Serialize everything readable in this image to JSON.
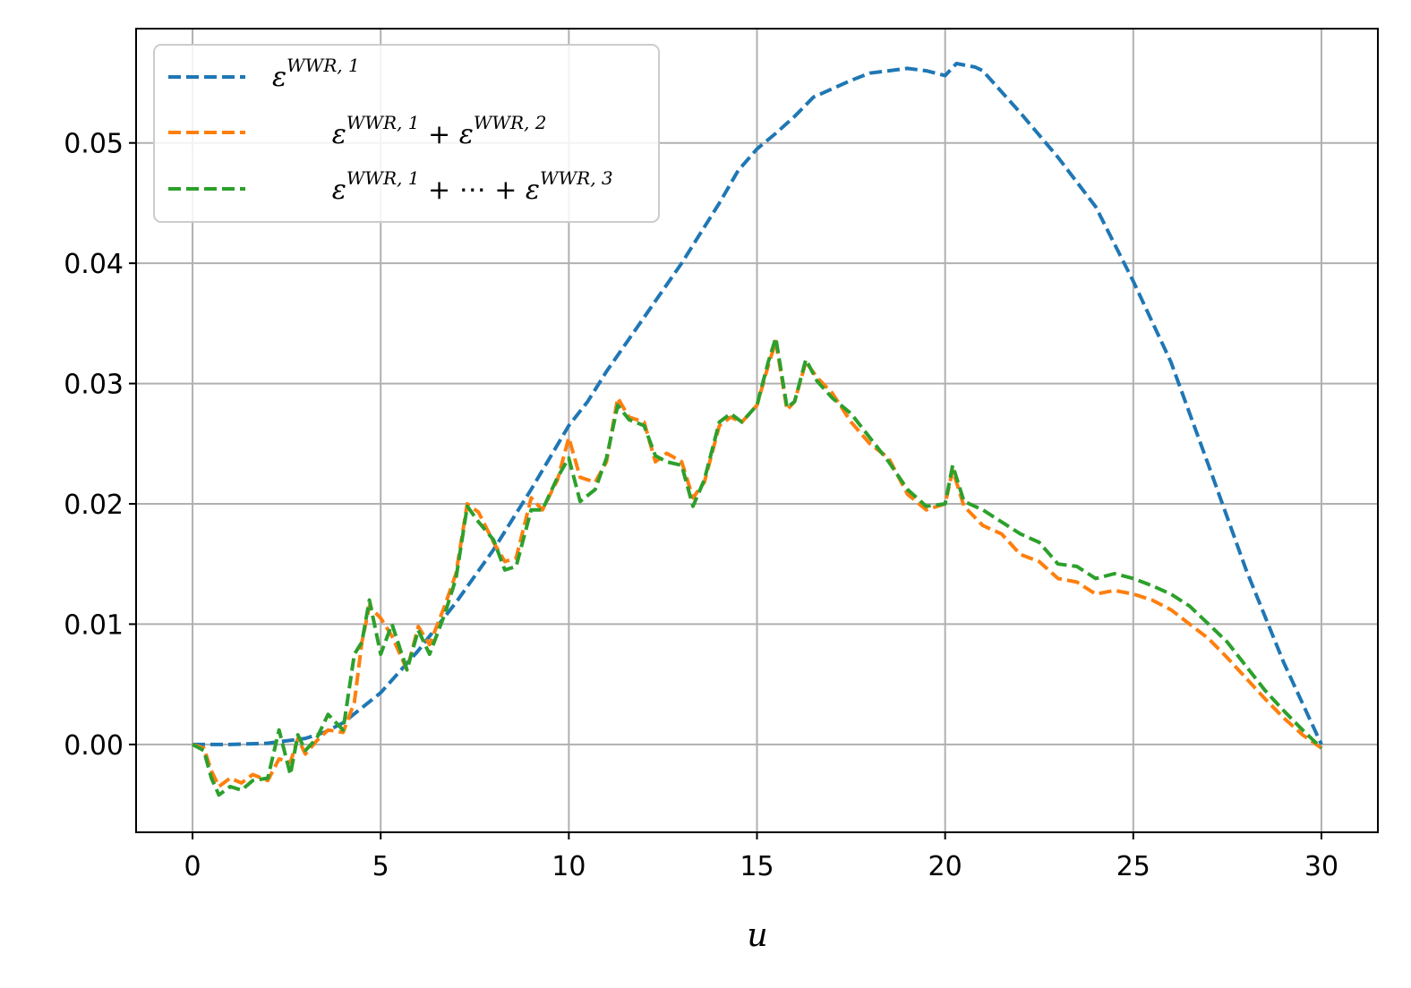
{
  "chart_data": {
    "type": "line",
    "xlabel": "u",
    "ylabel": "",
    "xlim": [
      -1.5,
      31.5
    ],
    "ylim": [
      -0.0073,
      0.0595
    ],
    "grid": true,
    "legend_position": "top-left",
    "x_ticks": [
      0,
      5,
      10,
      15,
      20,
      25,
      30
    ],
    "x_tick_labels": [
      "0",
      "5",
      "10",
      "15",
      "20",
      "25",
      "30"
    ],
    "y_ticks": [
      0.0,
      0.01,
      0.02,
      0.03,
      0.04,
      0.05
    ],
    "y_tick_labels": [
      "0.00",
      "0.01",
      "0.02",
      "0.03",
      "0.04",
      "0.05"
    ],
    "series": [
      {
        "name": "ε^{WWR,1}",
        "legend": {
          "base": "ε",
          "sup": "WWR, 1"
        },
        "color": "#1f77b4",
        "style": "dashed",
        "x": [
          0,
          1,
          2,
          3,
          3.5,
          4,
          5,
          6,
          7,
          8,
          9,
          10,
          10.5,
          11,
          12,
          13,
          14,
          14.5,
          15,
          15.5,
          16,
          16.5,
          17,
          17.5,
          18,
          18.5,
          19,
          19.5,
          20,
          20.3,
          20.8,
          21,
          22,
          23,
          24,
          25,
          26,
          27,
          28,
          29,
          30
        ],
        "values": [
          0.0,
          0.0,
          0.0001,
          0.0005,
          0.001,
          0.0018,
          0.0043,
          0.0078,
          0.0118,
          0.0162,
          0.0212,
          0.0265,
          0.0285,
          0.031,
          0.0355,
          0.04,
          0.045,
          0.0477,
          0.0495,
          0.0508,
          0.0522,
          0.0538,
          0.0545,
          0.0552,
          0.0558,
          0.056,
          0.0562,
          0.056,
          0.0556,
          0.0566,
          0.0563,
          0.056,
          0.0525,
          0.0488,
          0.0447,
          0.0385,
          0.0318,
          0.0232,
          0.0145,
          0.0068,
          0.0
        ]
      },
      {
        "name": "ε^{WWR,1} + ε^{WWR,2}",
        "legend": {
          "base1": "ε",
          "sup1": "WWR, 1",
          "op": " + ",
          "base2": "ε",
          "sup2": "WWR, 2"
        },
        "color": "#ff7f0e",
        "style": "dashed",
        "x": [
          0,
          0.3,
          0.5,
          0.7,
          1.0,
          1.3,
          1.6,
          2.0,
          2.3,
          2.6,
          2.8,
          3.0,
          3.3,
          3.6,
          4.0,
          4.3,
          4.5,
          4.7,
          5.0,
          5.3,
          5.7,
          6.0,
          6.3,
          6.7,
          7.0,
          7.3,
          7.6,
          8.0,
          8.3,
          8.6,
          9.0,
          9.3,
          9.7,
          10.0,
          10.3,
          10.7,
          11.0,
          11.3,
          11.6,
          12.0,
          12.3,
          12.6,
          13.0,
          13.3,
          13.6,
          14.0,
          14.3,
          14.6,
          15.0,
          15.3,
          15.5,
          15.8,
          16.0,
          16.3,
          16.6,
          17.0,
          17.5,
          18.0,
          18.5,
          19.0,
          19.5,
          20.0,
          20.2,
          20.5,
          21.0,
          21.5,
          22.0,
          22.5,
          23.0,
          23.5,
          24.0,
          24.5,
          25.0,
          25.5,
          26.0,
          26.5,
          27.0,
          27.5,
          28.0,
          28.5,
          29.0,
          29.5,
          30.0
        ],
        "values": [
          0.0,
          -0.0003,
          -0.0022,
          -0.0035,
          -0.0028,
          -0.0032,
          -0.0025,
          -0.003,
          -0.0012,
          -0.0015,
          0.0005,
          -0.0008,
          0.0003,
          0.0012,
          0.001,
          0.0035,
          0.0085,
          0.0115,
          0.0105,
          0.009,
          0.0062,
          0.0098,
          0.0083,
          0.0115,
          0.0142,
          0.02,
          0.0193,
          0.0168,
          0.0152,
          0.0155,
          0.0205,
          0.0195,
          0.022,
          0.0255,
          0.0222,
          0.0218,
          0.0235,
          0.0288,
          0.0272,
          0.0268,
          0.0235,
          0.0242,
          0.0235,
          0.0205,
          0.0218,
          0.0265,
          0.0272,
          0.0268,
          0.0282,
          0.0315,
          0.0335,
          0.0278,
          0.0285,
          0.0318,
          0.0305,
          0.0292,
          0.0268,
          0.025,
          0.0238,
          0.0208,
          0.0195,
          0.02,
          0.0228,
          0.0198,
          0.0182,
          0.0175,
          0.0158,
          0.0152,
          0.0138,
          0.0135,
          0.0125,
          0.0128,
          0.0125,
          0.012,
          0.0112,
          0.01,
          0.0088,
          0.0072,
          0.0055,
          0.0038,
          0.0022,
          0.0008,
          -0.0003
        ]
      },
      {
        "name": "ε^{WWR,1} + ⋯ + ε^{WWR,3}",
        "legend": {
          "base1": "ε",
          "sup1": "WWR, 1",
          "op": " + ⋯ + ",
          "base2": "ε",
          "sup2": "WWR, 3"
        },
        "color": "#2ca02c",
        "style": "dashed",
        "x": [
          0,
          0.3,
          0.5,
          0.7,
          1.0,
          1.3,
          1.6,
          2.0,
          2.3,
          2.6,
          2.8,
          3.0,
          3.3,
          3.6,
          4.0,
          4.3,
          4.5,
          4.7,
          5.0,
          5.3,
          5.7,
          6.0,
          6.3,
          6.7,
          7.0,
          7.3,
          7.6,
          8.0,
          8.3,
          8.6,
          9.0,
          9.3,
          9.7,
          10.0,
          10.3,
          10.7,
          11.0,
          11.3,
          11.6,
          12.0,
          12.3,
          12.6,
          13.0,
          13.3,
          13.6,
          14.0,
          14.3,
          14.6,
          15.0,
          15.3,
          15.5,
          15.8,
          16.0,
          16.3,
          16.6,
          17.0,
          17.5,
          18.0,
          18.5,
          19.0,
          19.5,
          20.0,
          20.2,
          20.5,
          21.0,
          21.5,
          22.0,
          22.5,
          23.0,
          23.5,
          24.0,
          24.5,
          25.0,
          25.5,
          26.0,
          26.5,
          27.0,
          27.5,
          28.0,
          28.5,
          29.0,
          29.5,
          30.0
        ],
        "values": [
          0.0,
          -0.0005,
          -0.0028,
          -0.0042,
          -0.0035,
          -0.0038,
          -0.003,
          -0.0028,
          0.0012,
          -0.0025,
          0.0008,
          -0.0005,
          0.0005,
          0.0025,
          0.0012,
          0.0075,
          0.0085,
          0.012,
          0.0075,
          0.01,
          0.0062,
          0.0095,
          0.0075,
          0.0108,
          0.0138,
          0.0198,
          0.0185,
          0.017,
          0.0145,
          0.0148,
          0.0195,
          0.0195,
          0.0222,
          0.0238,
          0.0202,
          0.0212,
          0.0238,
          0.0282,
          0.027,
          0.0265,
          0.024,
          0.0235,
          0.0232,
          0.0198,
          0.022,
          0.0268,
          0.0275,
          0.0268,
          0.0282,
          0.0318,
          0.0338,
          0.028,
          0.0285,
          0.032,
          0.0302,
          0.0288,
          0.0275,
          0.0255,
          0.0235,
          0.0212,
          0.0198,
          0.02,
          0.0232,
          0.0202,
          0.0195,
          0.0185,
          0.0175,
          0.0168,
          0.015,
          0.0148,
          0.0138,
          0.0142,
          0.0138,
          0.0132,
          0.0125,
          0.0115,
          0.01,
          0.0085,
          0.0065,
          0.0045,
          0.0028,
          0.0012,
          -0.0003
        ]
      }
    ]
  }
}
